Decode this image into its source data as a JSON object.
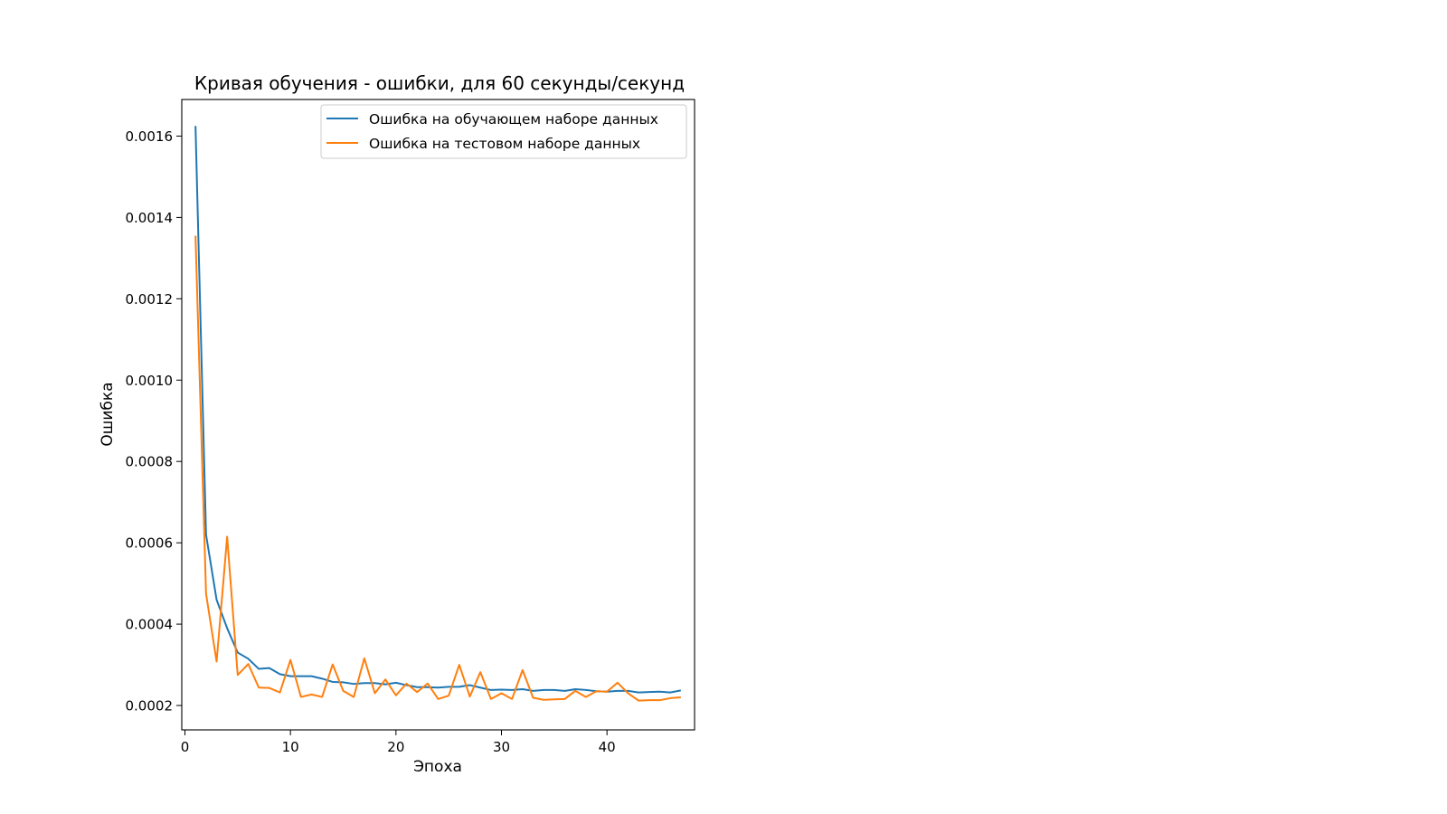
{
  "chart_data": {
    "type": "line",
    "title": "Кривая обучения - ошибки, для 60 секунды/секунд",
    "xlabel": "Эпоха",
    "ylabel": "Ошибка",
    "xlim": [
      -0.3,
      48.3
    ],
    "ylim": [
      0.00014,
      0.00169
    ],
    "xticks": [
      0,
      10,
      20,
      30,
      40
    ],
    "yticks": [
      0.0002,
      0.0004,
      0.0006,
      0.0008,
      0.001,
      0.0012,
      0.0014,
      0.0016
    ],
    "ytick_labels": [
      "0.0002",
      "0.0004",
      "0.0006",
      "0.0008",
      "0.0010",
      "0.0012",
      "0.0014",
      "0.0016"
    ],
    "grid": false,
    "legend": "top-right",
    "x": [
      1,
      2,
      3,
      4,
      5,
      6,
      7,
      8,
      9,
      10,
      11,
      12,
      13,
      14,
      15,
      16,
      17,
      18,
      19,
      20,
      21,
      22,
      23,
      24,
      25,
      26,
      27,
      28,
      29,
      30,
      31,
      32,
      33,
      34,
      35,
      36,
      37,
      38,
      39,
      40,
      41,
      42,
      43,
      44,
      45,
      46,
      47
    ],
    "series": [
      {
        "name": "Ошибка на обучающем наборе данных",
        "color": "#1f77b4",
        "values": [
          0.001625,
          0.00062,
          0.00046,
          0.00039,
          0.00033,
          0.000315,
          0.00029,
          0.000292,
          0.000277,
          0.000272,
          0.000272,
          0.000272,
          0.000266,
          0.000258,
          0.000257,
          0.000253,
          0.000255,
          0.000255,
          0.000252,
          0.000256,
          0.00025,
          0.000245,
          0.000245,
          0.000244,
          0.000246,
          0.000246,
          0.00025,
          0.000244,
          0.000238,
          0.000239,
          0.000238,
          0.00024,
          0.000236,
          0.000238,
          0.000238,
          0.000236,
          0.00024,
          0.000238,
          0.000235,
          0.000234,
          0.000236,
          0.000236,
          0.000232,
          0.000233,
          0.000234,
          0.000232,
          0.000237
        ]
      },
      {
        "name": "Ошибка на тестовом наборе данных",
        "color": "#ff7f0e",
        "values": [
          0.001355,
          0.000475,
          0.000308,
          0.000615,
          0.000275,
          0.000302,
          0.000244,
          0.000243,
          0.000232,
          0.000312,
          0.000221,
          0.000227,
          0.000221,
          0.000301,
          0.000236,
          0.000221,
          0.000316,
          0.00023,
          0.000264,
          0.000225,
          0.000254,
          0.000233,
          0.000254,
          0.000216,
          0.000224,
          0.0003,
          0.000222,
          0.000282,
          0.000216,
          0.00023,
          0.000216,
          0.000287,
          0.000219,
          0.000214,
          0.000215,
          0.000216,
          0.000236,
          0.000221,
          0.000235,
          0.000234,
          0.000256,
          0.00023,
          0.000212,
          0.000213,
          0.000213,
          0.000218,
          0.00022
        ]
      }
    ]
  }
}
